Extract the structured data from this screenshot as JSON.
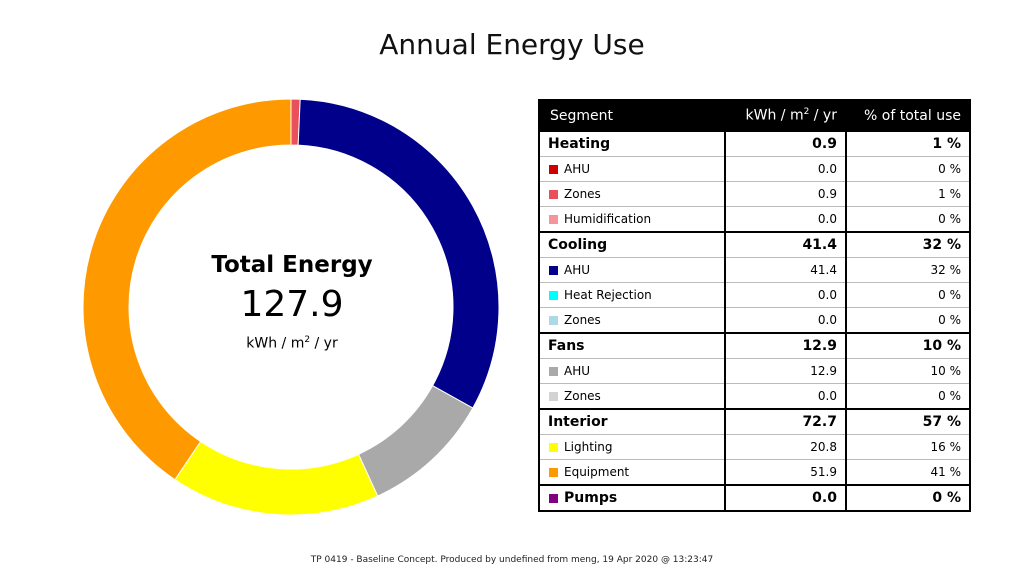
{
  "title": "Annual Energy Use",
  "center": {
    "label": "Total Energy",
    "value": "127.9",
    "unit_prefix": "kWh / m",
    "unit_sup": "2",
    "unit_suffix": " / yr"
  },
  "table": {
    "headers": {
      "segment": "Segment",
      "kwh_prefix": "kWh / m",
      "kwh_sup": "2",
      "kwh_suffix": " / yr",
      "pct": "% of total use"
    },
    "groups": [
      {
        "name": "Heating",
        "value": "0.9",
        "pct": "1 %",
        "items": [
          {
            "name": "AHU",
            "value": "0.0",
            "pct": "0 %",
            "color": "#cc0000"
          },
          {
            "name": "Zones",
            "value": "0.9",
            "pct": "1 %",
            "color": "#e8505b"
          },
          {
            "name": "Humidification",
            "value": "0.0",
            "pct": "0 %",
            "color": "#f3959b"
          }
        ]
      },
      {
        "name": "Cooling",
        "value": "41.4",
        "pct": "32 %",
        "items": [
          {
            "name": "AHU",
            "value": "41.4",
            "pct": "32 %",
            "color": "#00008b"
          },
          {
            "name": "Heat Rejection",
            "value": "0.0",
            "pct": "0 %",
            "color": "#00ffff"
          },
          {
            "name": "Zones",
            "value": "0.0",
            "pct": "0 %",
            "color": "#add8e6"
          }
        ]
      },
      {
        "name": "Fans",
        "value": "12.9",
        "pct": "10 %",
        "items": [
          {
            "name": "AHU",
            "value": "12.9",
            "pct": "10 %",
            "color": "#a9a9a9"
          },
          {
            "name": "Zones",
            "value": "0.0",
            "pct": "0 %",
            "color": "#d3d3d3"
          }
        ]
      },
      {
        "name": "Interior",
        "value": "72.7",
        "pct": "57 %",
        "items": [
          {
            "name": "Lighting",
            "value": "20.8",
            "pct": "16 %",
            "color": "#ffff00"
          },
          {
            "name": "Equipment",
            "value": "51.9",
            "pct": "41 %",
            "color": "#ff9900"
          }
        ]
      },
      {
        "name": "Pumps",
        "value": "0.0",
        "pct": "0 %",
        "color": "#800080",
        "items": []
      }
    ]
  },
  "chart_data": {
    "type": "pie",
    "title": "Annual Energy Use",
    "center_total": 127.9,
    "unit": "kWh / m2 / yr",
    "start_angle_deg": 0,
    "slices": [
      {
        "label": "Heating Zones",
        "value": 0.9,
        "color": "#e8505b"
      },
      {
        "label": "Cooling AHU",
        "value": 41.4,
        "color": "#00008b"
      },
      {
        "label": "Fans AHU",
        "value": 12.9,
        "color": "#a9a9a9"
      },
      {
        "label": "Lighting",
        "value": 20.8,
        "color": "#ffff00"
      },
      {
        "label": "Equipment",
        "value": 51.9,
        "color": "#ff9900"
      }
    ]
  },
  "footer": "TP 0419 - Baseline Concept. Produced by undefined from meng, 19 Apr 2020 @ 13:23:47"
}
